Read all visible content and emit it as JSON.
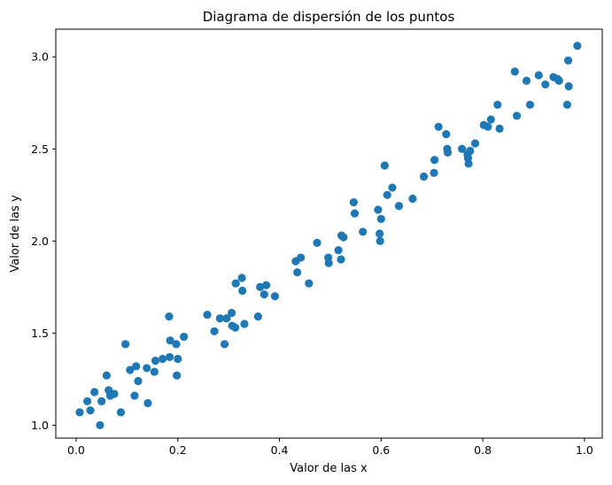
{
  "chart_data": {
    "type": "scatter",
    "title": "Diagrama de dispersión de los puntos",
    "xlabel": "Valor de las x",
    "ylabel": "Valor de las y",
    "xlim": [
      -0.04,
      1.035
    ],
    "ylim": [
      0.93,
      3.15
    ],
    "xticks": [
      0.0,
      0.2,
      0.4,
      0.6,
      0.8,
      1.0
    ],
    "xtick_labels": [
      "0.0",
      "0.2",
      "0.4",
      "0.6",
      "0.8",
      "1.0"
    ],
    "yticks": [
      1.0,
      1.5,
      2.0,
      2.5,
      3.0
    ],
    "ytick_labels": [
      "1.0",
      "1.5",
      "2.0",
      "2.5",
      "3.0"
    ],
    "grid": false,
    "marker_color": "#1f77b4",
    "series": [
      {
        "points": [
          [
            0.007,
            1.07
          ],
          [
            0.022,
            1.13
          ],
          [
            0.028,
            1.08
          ],
          [
            0.036,
            1.18
          ],
          [
            0.047,
            1.0
          ],
          [
            0.05,
            1.13
          ],
          [
            0.06,
            1.27
          ],
          [
            0.064,
            1.19
          ],
          [
            0.067,
            1.16
          ],
          [
            0.075,
            1.17
          ],
          [
            0.088,
            1.07
          ],
          [
            0.097,
            1.44
          ],
          [
            0.106,
            1.3
          ],
          [
            0.115,
            1.16
          ],
          [
            0.118,
            1.32
          ],
          [
            0.122,
            1.24
          ],
          [
            0.139,
            1.31
          ],
          [
            0.141,
            1.12
          ],
          [
            0.154,
            1.29
          ],
          [
            0.156,
            1.35
          ],
          [
            0.17,
            1.36
          ],
          [
            0.183,
            1.59
          ],
          [
            0.184,
            1.37
          ],
          [
            0.185,
            1.46
          ],
          [
            0.197,
            1.44
          ],
          [
            0.198,
            1.27
          ],
          [
            0.2,
            1.36
          ],
          [
            0.212,
            1.48
          ],
          [
            0.258,
            1.6
          ],
          [
            0.272,
            1.51
          ],
          [
            0.283,
            1.58
          ],
          [
            0.292,
            1.44
          ],
          [
            0.296,
            1.58
          ],
          [
            0.306,
            1.61
          ],
          [
            0.307,
            1.54
          ],
          [
            0.313,
            1.53
          ],
          [
            0.314,
            1.77
          ],
          [
            0.326,
            1.8
          ],
          [
            0.327,
            1.73
          ],
          [
            0.331,
            1.55
          ],
          [
            0.358,
            1.59
          ],
          [
            0.362,
            1.75
          ],
          [
            0.37,
            1.71
          ],
          [
            0.374,
            1.76
          ],
          [
            0.391,
            1.7
          ],
          [
            0.432,
            1.89
          ],
          [
            0.435,
            1.83
          ],
          [
            0.442,
            1.91
          ],
          [
            0.458,
            1.77
          ],
          [
            0.474,
            1.99
          ],
          [
            0.496,
            1.91
          ],
          [
            0.497,
            1.88
          ],
          [
            0.516,
            1.95
          ],
          [
            0.521,
            1.9
          ],
          [
            0.522,
            2.03
          ],
          [
            0.526,
            2.02
          ],
          [
            0.546,
            2.21
          ],
          [
            0.548,
            2.15
          ],
          [
            0.564,
            2.05
          ],
          [
            0.594,
            2.17
          ],
          [
            0.597,
            2.04
          ],
          [
            0.598,
            2.0
          ],
          [
            0.6,
            2.12
          ],
          [
            0.607,
            2.41
          ],
          [
            0.612,
            2.25
          ],
          [
            0.622,
            2.29
          ],
          [
            0.635,
            2.19
          ],
          [
            0.662,
            2.23
          ],
          [
            0.684,
            2.35
          ],
          [
            0.704,
            2.37
          ],
          [
            0.705,
            2.44
          ],
          [
            0.713,
            2.62
          ],
          [
            0.728,
            2.58
          ],
          [
            0.73,
            2.5
          ],
          [
            0.731,
            2.48
          ],
          [
            0.759,
            2.5
          ],
          [
            0.77,
            2.47
          ],
          [
            0.771,
            2.45
          ],
          [
            0.772,
            2.42
          ],
          [
            0.775,
            2.49
          ],
          [
            0.785,
            2.53
          ],
          [
            0.802,
            2.63
          ],
          [
            0.81,
            2.62
          ],
          [
            0.816,
            2.66
          ],
          [
            0.829,
            2.74
          ],
          [
            0.833,
            2.61
          ],
          [
            0.863,
            2.92
          ],
          [
            0.867,
            2.68
          ],
          [
            0.886,
            2.87
          ],
          [
            0.893,
            2.74
          ],
          [
            0.91,
            2.9
          ],
          [
            0.923,
            2.85
          ],
          [
            0.939,
            2.89
          ],
          [
            0.947,
            2.88
          ],
          [
            0.95,
            2.87
          ],
          [
            0.966,
            2.74
          ],
          [
            0.968,
            2.98
          ],
          [
            0.969,
            2.84
          ],
          [
            0.986,
            3.06
          ]
        ]
      }
    ]
  }
}
